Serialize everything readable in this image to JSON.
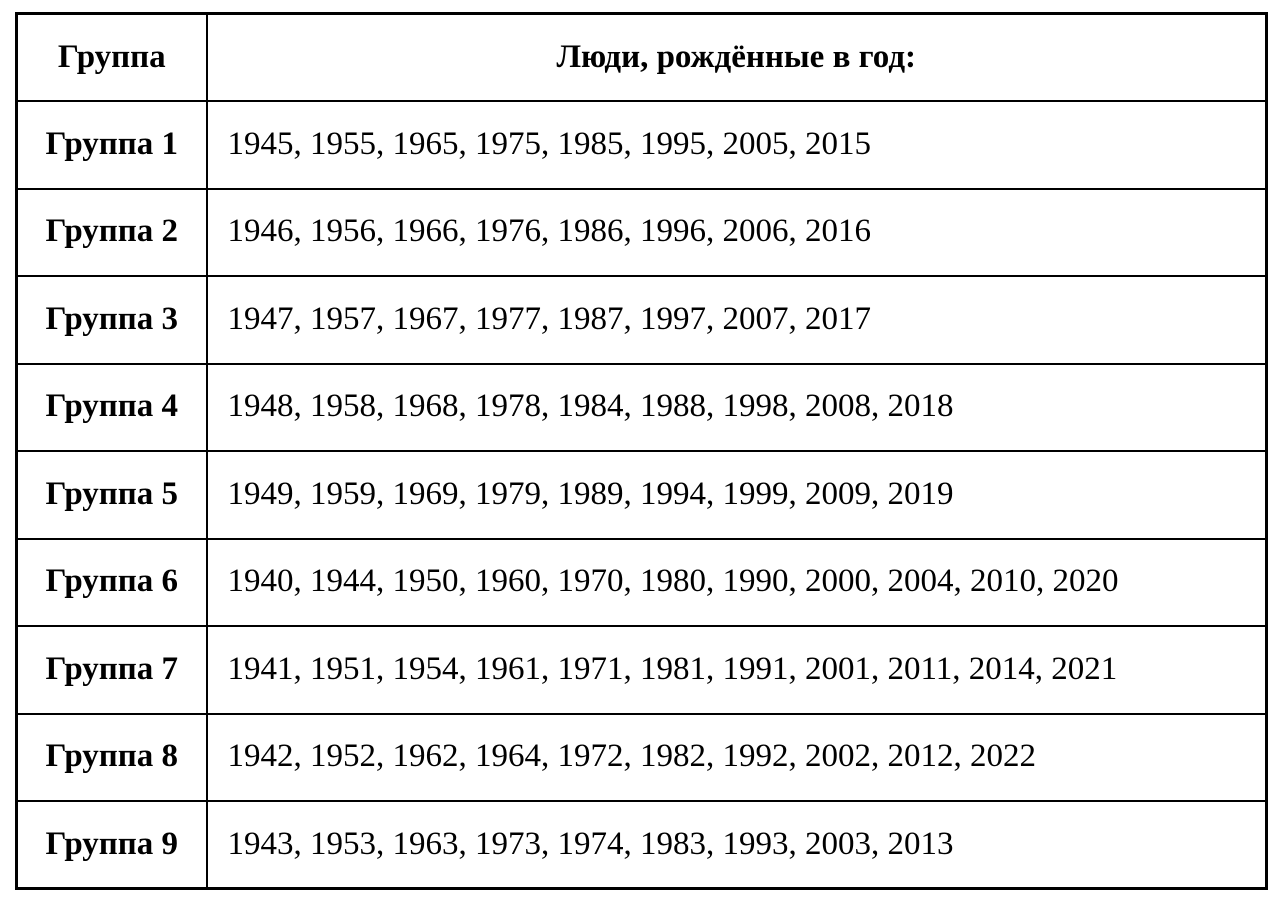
{
  "table": {
    "headers": {
      "group": "Группа",
      "years": "Люди, рождённые в год:"
    },
    "rows": [
      {
        "group": "Группа 1",
        "years": "1945, 1955, 1965, 1975, 1985, 1995, 2005, 2015"
      },
      {
        "group": "Группа 2",
        "years": "1946, 1956, 1966, 1976, 1986, 1996, 2006, 2016"
      },
      {
        "group": "Группа 3",
        "years": "1947, 1957, 1967, 1977, 1987, 1997, 2007, 2017"
      },
      {
        "group": "Группа 4",
        "years": "1948, 1958, 1968, 1978, 1984, 1988, 1998, 2008, 2018"
      },
      {
        "group": "Группа 5",
        "years": "1949, 1959, 1969, 1979, 1989, 1994, 1999, 2009, 2019"
      },
      {
        "group": "Группа 6",
        "years": "1940, 1944, 1950, 1960, 1970, 1980, 1990, 2000, 2004, 2010, 2020"
      },
      {
        "group": "Группа 7",
        "years": "1941, 1951, 1954, 1961, 1971, 1981, 1991, 2001, 2011, 2014, 2021"
      },
      {
        "group": "Группа 8",
        "years": "1942, 1952, 1962, 1964, 1972, 1982, 1992, 2002, 2012, 2022"
      },
      {
        "group": "Группа 9",
        "years": "1943, 1953, 1963, 1973, 1974, 1983, 1993, 2003, 2013"
      }
    ],
    "colors": {
      "border": "#000000",
      "background": "#ffffff",
      "text": "#000000"
    }
  }
}
